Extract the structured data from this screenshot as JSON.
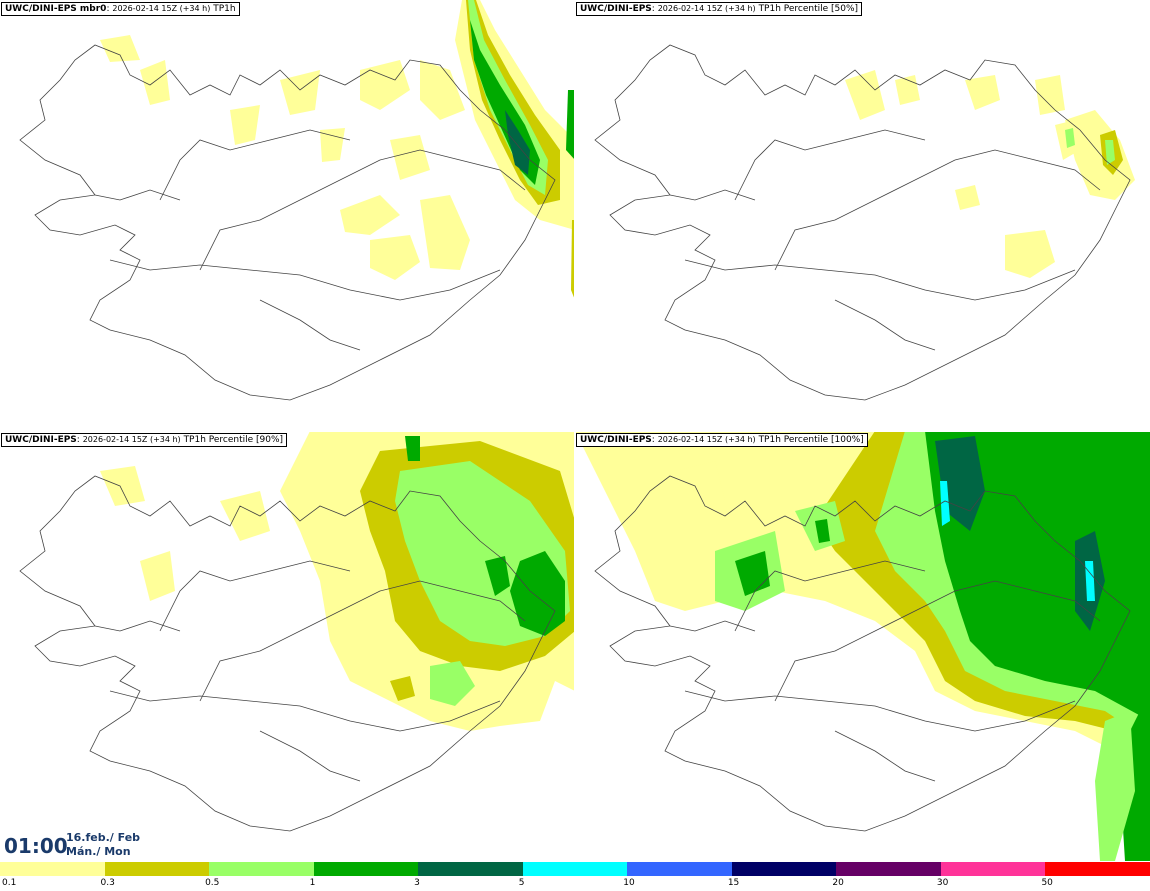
{
  "panels": [
    {
      "title_bold": "UWC/DINI-EPS mbr0",
      "title_date": "2026-02-14 15Z (+34 h)",
      "title_var": "TP1h"
    },
    {
      "title_bold": "UWC/DINI-EPS",
      "title_date": "2026-02-14 15Z (+34 h)",
      "title_var": "TP1h Percentile [50%]"
    },
    {
      "title_bold": "UWC/DINI-EPS",
      "title_date": "2026-02-14 15Z (+34 h)",
      "title_var": "TP1h Percentile [90%]"
    },
    {
      "title_bold": "UWC/DINI-EPS",
      "title_date": "2026-02-14 15Z (+34 h)",
      "title_var": "TP1h Percentile [100%]"
    }
  ],
  "time": {
    "clock": "01:00",
    "date_line1": "16.feb./ Feb",
    "date_line2": "Mán./ Mon"
  },
  "legend": {
    "labels": [
      "0.1",
      "0.3",
      "0.5",
      "1",
      "3",
      "5",
      "10",
      "15",
      "20",
      "30",
      "50"
    ],
    "colors": [
      "#ffff99",
      "#cccc00",
      "#99ff66",
      "#00aa00",
      "#006644",
      "#00ffff",
      "#3366ff",
      "#000066",
      "#660066",
      "#ff3399",
      "#ff0000"
    ]
  },
  "icons": {
    "map": "iceland-outline-map"
  }
}
